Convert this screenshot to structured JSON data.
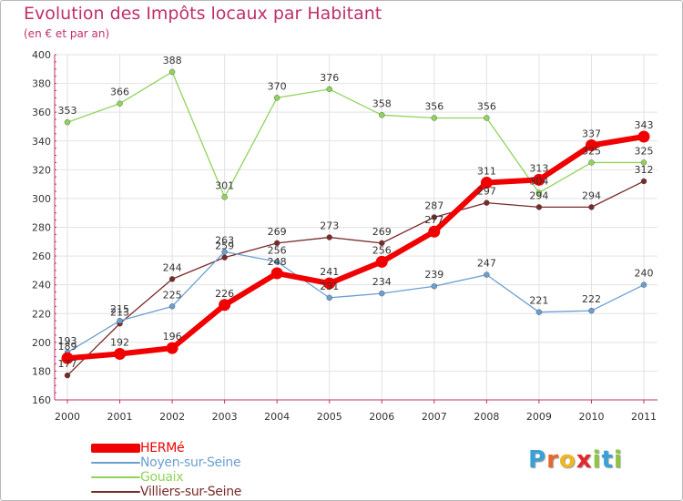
{
  "header": {
    "title": "Evolution des Impôts locaux par Habitant",
    "subtitle": "(en € et par an)"
  },
  "logo": {
    "letters": [
      "P",
      "r",
      "o",
      "x",
      "i",
      "t",
      "i"
    ],
    "colors": [
      "#3aa0d8",
      "#e8672d",
      "#f0b722",
      "#e4262c",
      "#8dc63f",
      "#3aa0d8",
      "#8dc63f"
    ]
  },
  "chart_data": {
    "type": "line",
    "title": "Evolution des Impôts locaux par Habitant",
    "subtitle": "(en € et par an)",
    "xlabel": "",
    "ylabel": "",
    "categories": [
      "2000",
      "2001",
      "2002",
      "2003",
      "2004",
      "2005",
      "2006",
      "2007",
      "2008",
      "2009",
      "2010",
      "2011"
    ],
    "ylim": [
      160,
      400
    ],
    "yticks": [
      160,
      180,
      200,
      220,
      240,
      260,
      280,
      300,
      320,
      340,
      360,
      380,
      400
    ],
    "grid": true,
    "legend_position": "bottom-left",
    "series": [
      {
        "name": "Villiers-sur-Seine",
        "color": "#7a2a2a",
        "width": 1.3,
        "marker": 3,
        "values": [
          177,
          213,
          244,
          259,
          269,
          273,
          269,
          287,
          297,
          294,
          294,
          312
        ],
        "labels": [
          "177",
          "213",
          "244",
          "259",
          "269",
          "273",
          "269",
          "287",
          "297",
          "294",
          "294",
          "312"
        ]
      },
      {
        "name": "Gouaix",
        "color": "#8fd45a",
        "width": 1.3,
        "marker": 3,
        "values": [
          353,
          366,
          388,
          301,
          370,
          376,
          358,
          356,
          356,
          304,
          325,
          325
        ],
        "labels": [
          "353",
          "366",
          "388",
          "301",
          "370",
          "376",
          "358",
          "356",
          "356",
          "304",
          "325",
          "325"
        ]
      },
      {
        "name": "Noyen-sur-Seine",
        "color": "#6a9fd0",
        "width": 1.3,
        "marker": 3,
        "values": [
          193,
          215,
          225,
          263,
          256,
          231,
          234,
          239,
          247,
          221,
          222,
          240
        ],
        "labels": [
          "193",
          "215",
          "225",
          "263",
          "256",
          "231",
          "234",
          "239",
          "247",
          "221",
          "222",
          "240"
        ]
      },
      {
        "name": "HERMé",
        "color": "#f00000",
        "width": 6,
        "marker": 6.5,
        "values": [
          189,
          192,
          196,
          226,
          248,
          241,
          256,
          277,
          311,
          313,
          337,
          343
        ],
        "labels": [
          "189",
          "192",
          "196",
          "226",
          "248",
          "241",
          "256",
          "277",
          "311",
          "313",
          "337",
          "343"
        ]
      }
    ]
  },
  "legend": {
    "items": [
      {
        "label": "HERMé",
        "color": "#f00000",
        "thickness": 10
      },
      {
        "label": "Noyen-sur-Seine",
        "color": "#6a9fd0",
        "thickness": 2
      },
      {
        "label": "Gouaix",
        "color": "#8fd45a",
        "thickness": 2
      },
      {
        "label": "Villiers-sur-Seine",
        "color": "#7a2a2a",
        "thickness": 2
      }
    ]
  }
}
